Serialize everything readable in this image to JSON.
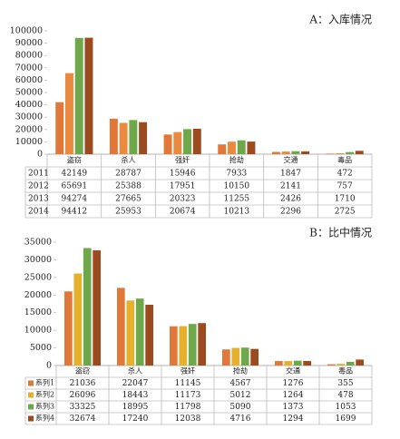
{
  "chart_data": [
    {
      "type": "bar",
      "title": "A：入库情况",
      "categories": [
        "盗窃",
        "杀人",
        "强奸",
        "抢劫",
        "交通",
        "毒品"
      ],
      "series": [
        {
          "name": "2011",
          "color": "#e2773a",
          "values": [
            42149,
            28787,
            15946,
            7933,
            1847,
            472
          ]
        },
        {
          "name": "2012",
          "color": "#ea8a3e",
          "values": [
            65691,
            25388,
            17951,
            10150,
            2141,
            757
          ]
        },
        {
          "name": "2013",
          "color": "#6fa84a",
          "values": [
            94274,
            27665,
            20323,
            11255,
            2426,
            1710
          ]
        },
        {
          "name": "2014",
          "color": "#9c4a1f",
          "values": [
            94412,
            25953,
            20674,
            10213,
            2296,
            2725
          ]
        }
      ],
      "ylim": [
        0,
        100000
      ],
      "yticks": [
        0,
        10000,
        20000,
        30000,
        40000,
        50000,
        60000,
        70000,
        80000,
        90000,
        100000
      ],
      "grid": false,
      "legend_keys": false
    },
    {
      "type": "bar",
      "title": "B：比中情况",
      "categories": [
        "盗窃",
        "杀人",
        "强奸",
        "抢劫",
        "交通",
        "毒品"
      ],
      "series": [
        {
          "name": "系列1",
          "color": "#e2773a",
          "values": [
            21036,
            22047,
            11145,
            4567,
            1276,
            355
          ]
        },
        {
          "name": "系列2",
          "color": "#e6b02c",
          "values": [
            26096,
            18443,
            11173,
            5012,
            1264,
            478
          ]
        },
        {
          "name": "系列3",
          "color": "#6fa84a",
          "values": [
            33325,
            18995,
            11798,
            5090,
            1373,
            1053
          ]
        },
        {
          "name": "系列4",
          "color": "#9c4a1f",
          "values": [
            32674,
            17240,
            12038,
            4716,
            1294,
            1699
          ]
        }
      ],
      "ylim": [
        0,
        35000
      ],
      "yticks": [
        0,
        5000,
        10000,
        15000,
        20000,
        25000,
        30000,
        35000
      ],
      "grid": false,
      "legend_keys": true
    }
  ]
}
